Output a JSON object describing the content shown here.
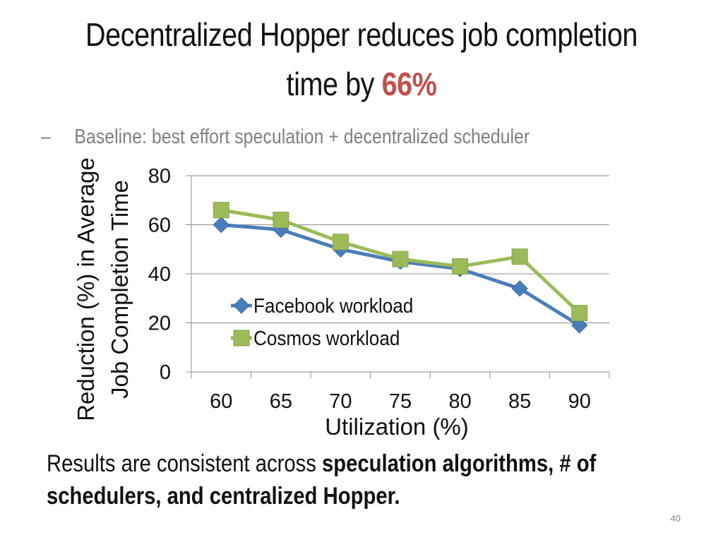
{
  "slide": {
    "title_line1": "Decentralized Hopper reduces job completion",
    "title_line2_prefix": "time by ",
    "title_highlight": "66%",
    "bullet_dash": "–",
    "bullet_text": "Baseline: best effort speculation + decentralized scheduler",
    "footer_prefix": "Results are consistent across ",
    "footer_bold": "speculation algorithms, # of schedulers, and centralized Hopper.",
    "slide_number": "40"
  },
  "colors": {
    "highlight": "#c0504d",
    "facebook": "#4a7ebb",
    "cosmos": "#9bbb59",
    "grid": "#8c8c8c"
  },
  "chart_data": {
    "type": "line",
    "title": "",
    "xlabel": "Utilization (%)",
    "ylabel_line1": "Reduction (%) in Average",
    "ylabel_line2": "Job Completion Time",
    "categories": [
      "60",
      "65",
      "70",
      "75",
      "80",
      "85",
      "90"
    ],
    "ylim": [
      0,
      80
    ],
    "yticks": [
      0,
      20,
      40,
      60,
      80
    ],
    "grid": true,
    "legend_position": "center-left",
    "series": [
      {
        "name": "Facebook workload",
        "marker": "diamond",
        "values": [
          60,
          58,
          50,
          45,
          42,
          34,
          19
        ]
      },
      {
        "name": "Cosmos workload",
        "marker": "square",
        "values": [
          66,
          62,
          53,
          46,
          43,
          47,
          24
        ]
      }
    ]
  }
}
